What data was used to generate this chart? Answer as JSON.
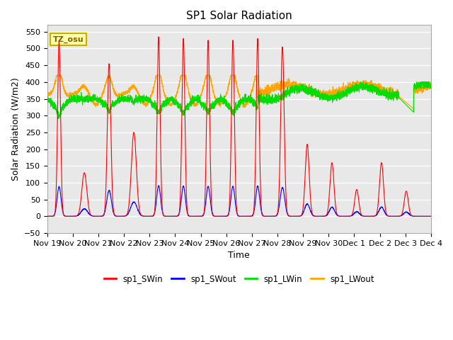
{
  "title": "SP1 Solar Radiation",
  "ylabel": "Solar Radiation (W/m2)",
  "xlabel": "Time",
  "ylim": [
    -50,
    570
  ],
  "yticks": [
    -50,
    0,
    50,
    100,
    150,
    200,
    250,
    300,
    350,
    400,
    450,
    500,
    550
  ],
  "xtick_labels": [
    "Nov 19",
    "Nov 20",
    "Nov 21",
    "Nov 22",
    "Nov 23",
    "Nov 24",
    "Nov 25",
    "Nov 26",
    "Nov 27",
    "Nov 28",
    "Nov 29",
    "Nov 30",
    "Dec 1",
    "Dec 2",
    "Dec 3",
    "Dec 4"
  ],
  "colors": {
    "SWin": "#ff0000",
    "SWout": "#0000ff",
    "LWin": "#00dd00",
    "LWout": "#ffa500"
  },
  "legend_labels": [
    "sp1_SWin",
    "sp1_SWout",
    "sp1_LWin",
    "sp1_LWout"
  ],
  "annotation": "TZ_osu",
  "background_color": "#e8e8e8",
  "grid_color": "#ffffff",
  "title_fontsize": 11,
  "axis_fontsize": 9,
  "tick_fontsize": 8
}
